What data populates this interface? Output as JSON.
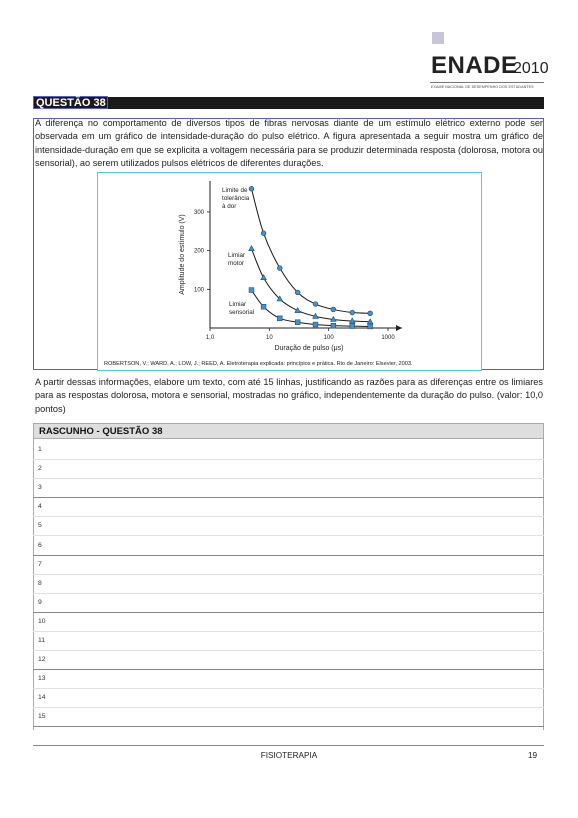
{
  "header": {
    "brand": "ENADE",
    "year": "2010",
    "tagline": "EXAME NACIONAL DE DESEMPENHO DOS ESTUDANTES"
  },
  "question": {
    "label": "QUESTÃO 38",
    "paragraph1": "A diferença no comportamento de diversos tipos de fibras nervosas diante de um estímulo elétrico externo pode ser observada em um gráfico de intensidade-duração do pulso elétrico. A figura apresentada a seguir mostra um gráfico de intensidade-duração em que se explicita a voltagem necessária para se produzir determinada resposta (dolorosa, motora ou sensorial), ao serem utilizados pulsos elétricos de diferentes durações.",
    "paragraph2": "A partir dessas informações, elabore um texto, com até 15 linhas, justificando as razões para as diferenças entre os limiares para as respostas dolorosa, motora e sensorial, mostradas no gráfico, independentemente da duração do pulso. (valor: 10,0 pontos)",
    "figure_caption": "ROBERTSON, V.; WARD, A.; LOW, J.; REED, A. Eletroterapia explicada: princípios e prática. Rio de Janeiro: Elsevier, 2003."
  },
  "chart_data": {
    "type": "line",
    "xlabel": "Duração de pulso (μs)",
    "ylabel": "Amplitude do estímulo (V)",
    "x_scale": "log",
    "xlim": [
      1,
      1000
    ],
    "ylim": [
      0,
      380
    ],
    "x_ticks": [
      "1,0",
      "10",
      "100",
      "1000"
    ],
    "y_ticks": [
      "100",
      "200",
      "300"
    ],
    "series": [
      {
        "name": "Limite de tolerância à dor",
        "marker": "circle",
        "x": [
          5,
          8,
          15,
          30,
          60,
          120,
          250,
          500
        ],
        "y": [
          360,
          245,
          155,
          92,
          62,
          48,
          40,
          38
        ]
      },
      {
        "name": "Limiar motor",
        "marker": "triangle",
        "x": [
          5,
          8,
          15,
          30,
          60,
          120,
          250,
          500
        ],
        "y": [
          205,
          130,
          75,
          45,
          30,
          22,
          18,
          16
        ]
      },
      {
        "name": "Limiar sensorial",
        "marker": "square",
        "x": [
          5,
          8,
          15,
          30,
          60,
          120,
          250,
          500
        ],
        "y": [
          98,
          55,
          25,
          15,
          9,
          6,
          5,
          4
        ]
      }
    ],
    "annotations": {
      "pain": [
        "Limite de",
        "tolerância",
        "à dor"
      ],
      "motor": [
        "Limiar",
        "motor"
      ],
      "sensory": [
        "Limiar",
        "sensorial"
      ]
    },
    "colors": {
      "curve": "#1a1a1a",
      "marker_fill": "#4a90c8",
      "marker_stroke": "#1c4f7a"
    }
  },
  "rascunho": {
    "title": "RASCUNHO - QUESTÃO 38",
    "lines": [
      "1",
      "2",
      "3",
      "4",
      "5",
      "6",
      "7",
      "8",
      "9",
      "10",
      "11",
      "12",
      "13",
      "14",
      "15"
    ]
  },
  "footer": {
    "course": "FISIOTERAPIA",
    "page": "19"
  }
}
